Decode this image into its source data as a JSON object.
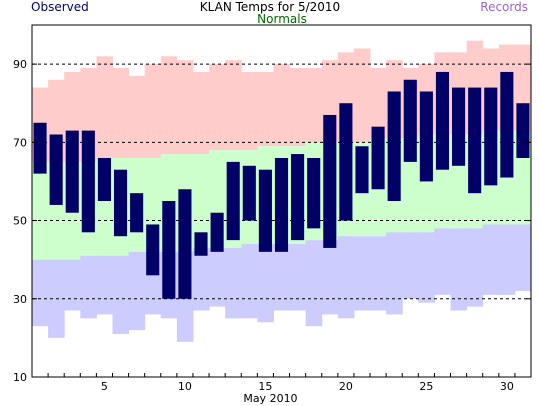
{
  "header": {
    "title": "KLAN Temps for 5/2010",
    "observed_label": "Observed",
    "normals_label": "Normals",
    "records_label": "Records"
  },
  "colors": {
    "observed": "#000066",
    "normals_text": "#006600",
    "records_text": "#9966cc",
    "record_high_band": "#ffcccc",
    "normal_band": "#ccffcc",
    "record_low_band": "#ccccff",
    "grid": "#000000"
  },
  "chart_data": {
    "type": "bar",
    "title": "KLAN Temps for 5/2010",
    "xlabel": "May 2010",
    "ylabel": "",
    "xlim": [
      1,
      31
    ],
    "ylim": [
      10,
      100
    ],
    "y_ticks": [
      10,
      30,
      50,
      70,
      90
    ],
    "x_tick_labels": [
      5,
      10,
      15,
      20,
      25,
      30
    ],
    "gridlines": [
      30,
      50,
      70,
      90
    ],
    "days": [
      1,
      2,
      3,
      4,
      5,
      6,
      7,
      8,
      9,
      10,
      11,
      12,
      13,
      14,
      15,
      16,
      17,
      18,
      19,
      20,
      21,
      22,
      23,
      24,
      25,
      26,
      27,
      28,
      29,
      30,
      31
    ],
    "series": [
      {
        "name": "Observed High",
        "values": [
          75,
          72,
          73,
          73,
          66,
          63,
          57,
          49,
          55,
          58,
          47,
          52,
          65,
          64,
          63,
          66,
          67,
          66,
          77,
          80,
          69,
          74,
          83,
          86,
          83,
          88,
          84,
          84,
          84,
          88,
          80
        ]
      },
      {
        "name": "Observed Low",
        "values": [
          62,
          54,
          52,
          47,
          55,
          46,
          47,
          36,
          30,
          30,
          41,
          42,
          45,
          50,
          42,
          42,
          45,
          48,
          43,
          50,
          57,
          58,
          55,
          65,
          60,
          63,
          64,
          57,
          59,
          61,
          66
        ]
      },
      {
        "name": "Record High",
        "values": [
          84,
          86,
          88,
          89,
          92,
          89,
          87,
          90,
          92,
          91,
          88,
          90,
          91,
          88,
          88,
          90,
          89,
          89,
          91,
          93,
          94,
          89,
          91,
          89,
          90,
          93,
          93,
          96,
          94,
          95,
          95
        ]
      },
      {
        "name": "Normal High",
        "values": [
          65,
          65,
          65,
          65,
          66,
          66,
          66,
          66,
          67,
          67,
          67,
          68,
          68,
          68,
          69,
          69,
          69,
          70,
          70,
          70,
          70,
          71,
          71,
          71,
          72,
          72,
          72,
          72,
          73,
          73,
          73
        ]
      },
      {
        "name": "Normal Low",
        "values": [
          40,
          40,
          40,
          41,
          41,
          41,
          42,
          42,
          42,
          42,
          43,
          43,
          43,
          44,
          44,
          44,
          44,
          45,
          45,
          46,
          46,
          46,
          47,
          47,
          47,
          48,
          48,
          48,
          49,
          49,
          49
        ]
      },
      {
        "name": "Record Low",
        "values": [
          23,
          20,
          27,
          25,
          26,
          21,
          22,
          26,
          25,
          19,
          27,
          28,
          25,
          25,
          24,
          27,
          27,
          23,
          26,
          25,
          27,
          27,
          26,
          30,
          29,
          31,
          27,
          28,
          31,
          31,
          32
        ]
      }
    ]
  }
}
